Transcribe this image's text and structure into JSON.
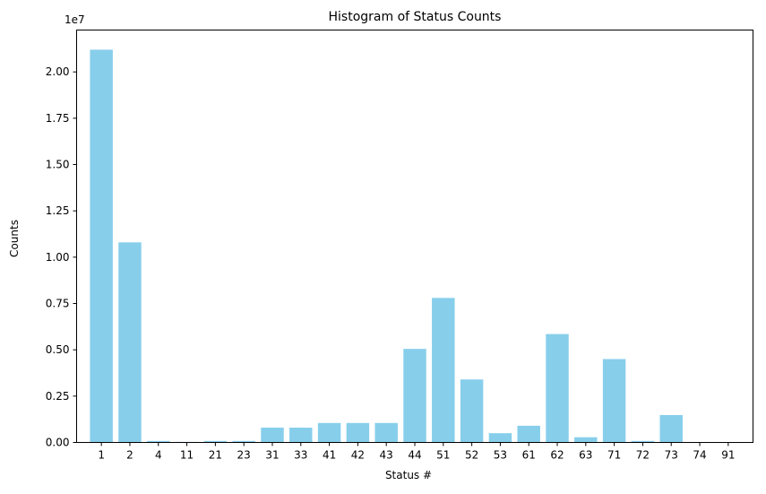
{
  "chart_data": {
    "type": "bar",
    "title": "Histogram of Status Counts",
    "xlabel": "Status #",
    "ylabel": "Counts",
    "offset_label": "1e7",
    "categories": [
      "1",
      "2",
      "4",
      "11",
      "21",
      "23",
      "31",
      "33",
      "41",
      "42",
      "43",
      "44",
      "51",
      "52",
      "53",
      "61",
      "62",
      "63",
      "71",
      "72",
      "73",
      "74",
      "91"
    ],
    "values": [
      21200000,
      10800000,
      80000,
      30000,
      80000,
      80000,
      800000,
      800000,
      1050000,
      1050000,
      1050000,
      5050000,
      7800000,
      3400000,
      500000,
      900000,
      5850000,
      280000,
      4500000,
      80000,
      1480000,
      10000,
      10000
    ],
    "ylim": [
      0,
      22260000
    ],
    "yticks": [
      0,
      2500000,
      5000000,
      7500000,
      10000000,
      12500000,
      15000000,
      17500000,
      20000000
    ],
    "ytick_labels": [
      "0.00",
      "0.25",
      "0.50",
      "0.75",
      "1.00",
      "1.25",
      "1.50",
      "1.75",
      "2.00"
    ],
    "bar_color": "#87ceeb",
    "grid": false,
    "legend": "none"
  }
}
